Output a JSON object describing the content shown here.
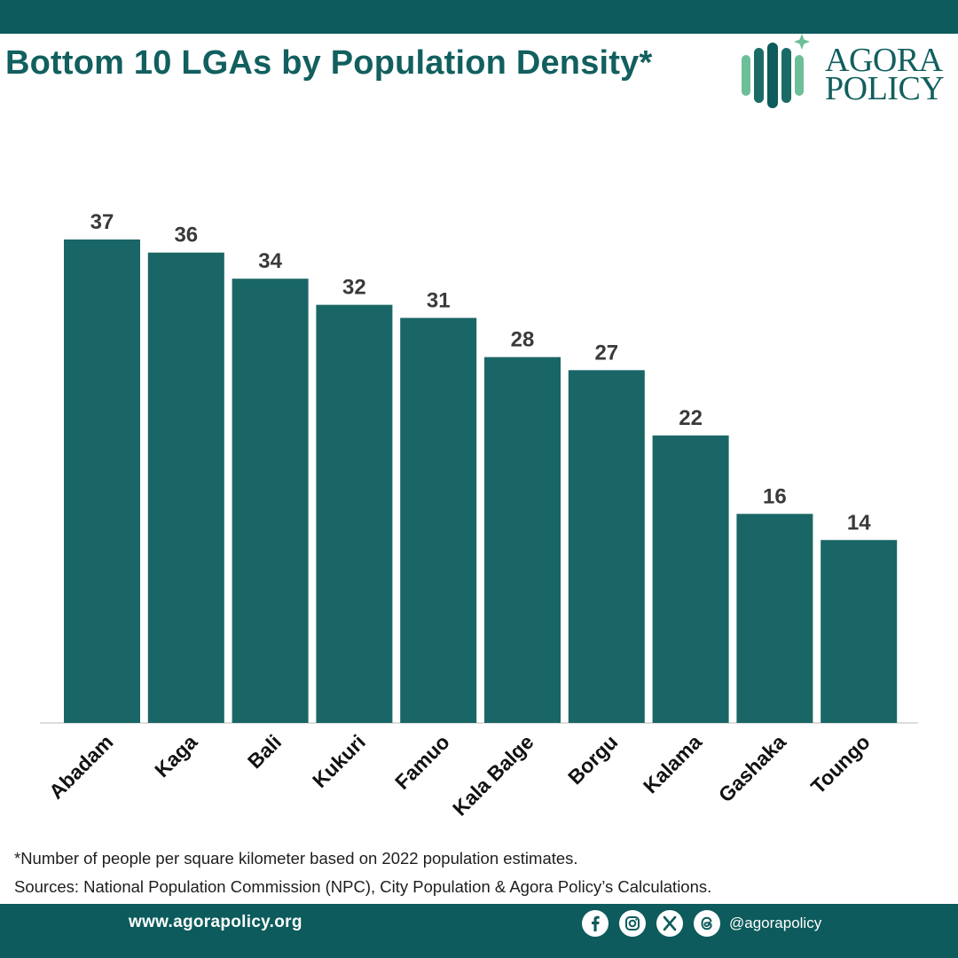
{
  "header": {
    "title": "Bottom 10 LGAs by Population Density*"
  },
  "logo": {
    "line1": "AGORA",
    "line2": "POLICY"
  },
  "chart_data": {
    "type": "bar",
    "categories": [
      "Abadam",
      "Kaga",
      "Bali",
      "Kukuri",
      "Famuo",
      "Kala Balge",
      "Borgu",
      "Kalama",
      "Gashaka",
      "Toungo"
    ],
    "values": [
      37,
      36,
      34,
      32,
      31,
      28,
      27,
      22,
      16,
      14
    ],
    "title": "Bottom 10 LGAs by Population Density*",
    "xlabel": "",
    "ylabel": "",
    "ylim": [
      0,
      37
    ],
    "grid": false,
    "legend": "none",
    "colors": {
      "bar": "#1a6666",
      "baseline": "#dddddd"
    }
  },
  "notes": {
    "footnote": "*Number of people per square kilometer based on 2022 population estimates.",
    "sources": "Sources: National Population Commission (NPC), City Population & Agora Policy’s Calculations."
  },
  "footer": {
    "website": "www.agorapolicy.org",
    "handle": "@agorapolicy",
    "icons": [
      "facebook-icon",
      "instagram-icon",
      "x-icon",
      "threads-icon"
    ]
  },
  "colors": {
    "brand_teal": "#0d5b5c",
    "bar": "#1a6666",
    "logo_light": "#6dbf98"
  }
}
